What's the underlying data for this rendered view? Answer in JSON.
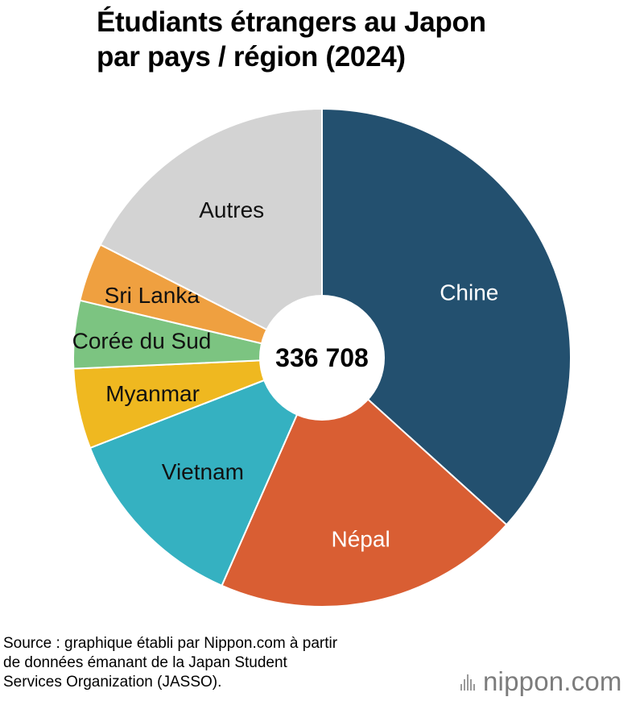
{
  "title": {
    "line1": "Étudiants étrangers au Japon",
    "line2": "par pays / région (2024)"
  },
  "chart_data": {
    "type": "pie",
    "style": "donut",
    "center_label": "336 708",
    "slices": [
      {
        "label": "Chine",
        "percent": 36.7,
        "color": "#23506f",
        "label_color": "#ffffff"
      },
      {
        "label": "Népal",
        "percent": 19.9,
        "color": "#d95e33",
        "label_color": "#ffffff"
      },
      {
        "label": "Vietnam",
        "percent": 12.5,
        "color": "#35b1c1",
        "label_color": "#111111"
      },
      {
        "label": "Myanmar",
        "percent": 5.2,
        "color": "#efb820",
        "label_color": "#111111"
      },
      {
        "label": "Corée du Sud",
        "percent": 4.4,
        "color": "#7cc481",
        "label_color": "#111111"
      },
      {
        "label": "Sri Lanka",
        "percent": 3.8,
        "color": "#efa040",
        "label_color": "#111111"
      },
      {
        "label": "Autres",
        "percent": 17.5,
        "color": "#d3d3d3",
        "label_color": "#111111"
      }
    ]
  },
  "source": {
    "line1": "Source : graphique établi par Nippon.com à partir",
    "line2": "de données émanant de la Japan Student",
    "line3": "Services Organization (JASSO)."
  },
  "logo": {
    "text": "nippon.com"
  }
}
